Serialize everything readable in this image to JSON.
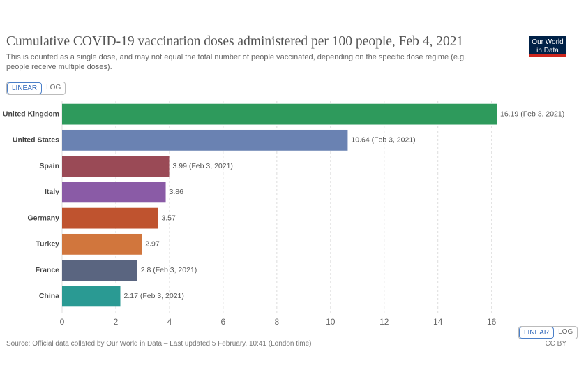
{
  "chart_data": {
    "type": "hbar",
    "title": "Cumulative COVID-19 vaccination doses administered per 100 people, Feb 4, 2021",
    "subtitle": "This is counted as a single dose, and may not equal the total number of people vaccinated, depending on the specific dose regime (e.g. people receive multiple doses).",
    "logo": [
      "Our World",
      "in Data"
    ],
    "scale_buttons": [
      "LINEAR",
      "LOG"
    ],
    "log_scale": false,
    "categories": [
      "United Kingdom",
      "United States",
      "Spain",
      "Italy",
      "Germany",
      "Turkey",
      "France",
      "China"
    ],
    "values": [
      16.19,
      10.64,
      3.99,
      3.86,
      3.57,
      2.97,
      2.8,
      2.17
    ],
    "value_labels": [
      "16.19 (Feb 3, 2021)",
      "10.64 (Feb 3, 2021)",
      "3.99 (Feb 3, 2021)",
      "3.86",
      "3.57",
      "2.97",
      "2.8 (Feb 3, 2021)",
      "2.17 (Feb 3, 2021)"
    ],
    "colors": [
      "#2e9a5c",
      "#6a82b2",
      "#9a4a56",
      "#8a5ba6",
      "#bf532f",
      "#d1763d",
      "#5a6580",
      "#2a9a93"
    ],
    "xlim": [
      0,
      16.19
    ],
    "xticks": [
      0,
      2,
      4,
      6,
      8,
      10,
      12,
      14,
      16
    ],
    "grid": true,
    "source": "Source: Official data collated by Our World in Data – Last updated 5 February, 10:41 (London time)",
    "license": "CC BY"
  }
}
